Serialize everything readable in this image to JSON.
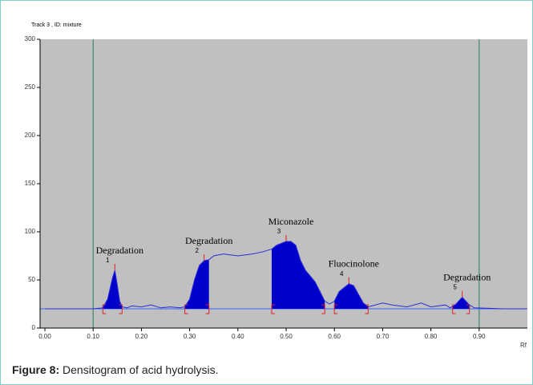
{
  "chart_data": {
    "type": "line",
    "header": "Track 3 , ID: mixture",
    "x_label": "Rf",
    "caption": {
      "label": "Figure 8:",
      "text": " Densitogram of acid hydrolysis."
    },
    "xlim": [
      -0.01,
      1.0
    ],
    "ylim": [
      0,
      300
    ],
    "xticks": [
      {
        "value": 0,
        "label": "0.00"
      },
      {
        "value": 0.1,
        "label": "0.10"
      },
      {
        "value": 0.2,
        "label": "0.20"
      },
      {
        "value": 0.3,
        "label": "0.30"
      },
      {
        "value": 0.4,
        "label": "0.40"
      },
      {
        "value": 0.5,
        "label": "0.50"
      },
      {
        "value": 0.6,
        "label": "0.60"
      },
      {
        "value": 0.7,
        "label": "0.70"
      },
      {
        "value": 0.8,
        "label": "0.80"
      },
      {
        "value": 0.9,
        "label": "0.90"
      }
    ],
    "yticks": [
      0,
      50,
      100,
      150,
      200,
      250,
      300
    ],
    "front_lines": [
      0.1,
      0.9
    ],
    "baseline": 20,
    "color": "#2b2bd6",
    "fill_color": "#0000cc",
    "plot_bg": "#c0c0c0",
    "x": [
      0,
      0.1,
      0.12,
      0.13,
      0.14,
      0.145,
      0.15,
      0.155,
      0.16,
      0.17,
      0.18,
      0.2,
      0.22,
      0.24,
      0.26,
      0.28,
      0.29,
      0.3,
      0.31,
      0.32,
      0.33,
      0.34,
      0.35,
      0.37,
      0.4,
      0.43,
      0.45,
      0.47,
      0.48,
      0.5,
      0.51,
      0.52,
      0.53,
      0.54,
      0.56,
      0.57,
      0.58,
      0.59,
      0.6,
      0.61,
      0.63,
      0.64,
      0.65,
      0.66,
      0.67,
      0.7,
      0.72,
      0.75,
      0.78,
      0.8,
      0.83,
      0.84,
      0.85,
      0.865,
      0.88,
      0.89,
      0.95,
      1.0
    ],
    "values": [
      20,
      20,
      21,
      30,
      52,
      60,
      45,
      28,
      22,
      21,
      23,
      22,
      24,
      21,
      22,
      21,
      22,
      30,
      50,
      65,
      70,
      71,
      75,
      77,
      75,
      77,
      79,
      82,
      86,
      90,
      90,
      86,
      70,
      60,
      48,
      38,
      28,
      25,
      28,
      38,
      46,
      44,
      35,
      26,
      22,
      26,
      24,
      22,
      26,
      22,
      24,
      21,
      24,
      32,
      24,
      21,
      20,
      20
    ],
    "peaks": [
      {
        "label": "Degradation",
        "number": "1",
        "start": 0.12,
        "end": 0.16
      },
      {
        "label": "Degradation",
        "number": "2",
        "start": 0.29,
        "end": 0.34
      },
      {
        "label": "Miconazole",
        "number": "3",
        "start": 0.47,
        "end": 0.58
      },
      {
        "label": "Fluocinolone",
        "number": "4",
        "start": 0.6,
        "end": 0.67
      },
      {
        "label": "Degradation",
        "number": "5",
        "start": 0.845,
        "end": 0.88
      }
    ]
  }
}
